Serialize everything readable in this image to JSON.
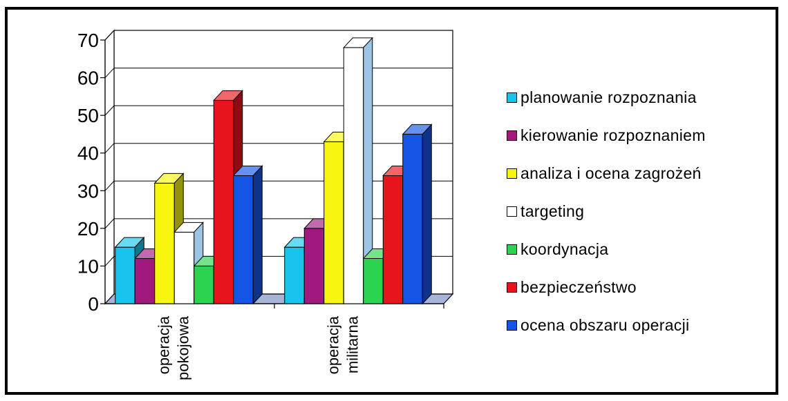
{
  "chart_data": {
    "type": "bar",
    "categories": [
      "operacja pokojowa",
      "operacja militarna"
    ],
    "category_lines": [
      [
        "operacja",
        "pokojowa"
      ],
      [
        "operacja",
        "militarna"
      ]
    ],
    "ylim": [
      0,
      70
    ],
    "yticks": [
      0,
      10,
      20,
      30,
      40,
      50,
      60,
      70
    ],
    "grid": true,
    "legend_position": "right",
    "style": "3d",
    "series": [
      {
        "name": "planowanie rozpoznania",
        "color": "#19c4ec",
        "values": [
          15,
          15
        ]
      },
      {
        "name": "kierowanie rozpoznaniem",
        "color": "#a1197f",
        "values": [
          12,
          20
        ]
      },
      {
        "name": "analiza i ocena zagrożeń",
        "color": "#f8f511",
        "values": [
          32,
          43
        ]
      },
      {
        "name": "targeting",
        "color": "#ffffff",
        "values": [
          19,
          68
        ]
      },
      {
        "name": "koordynacja",
        "color": "#2cd34e",
        "values": [
          10,
          12
        ]
      },
      {
        "name": "bezpieczeństwo",
        "color": "#e8141c",
        "values": [
          54,
          34
        ]
      },
      {
        "name": "ocena obszaru operacji",
        "color": "#1555e6",
        "values": [
          34,
          45
        ]
      }
    ]
  }
}
